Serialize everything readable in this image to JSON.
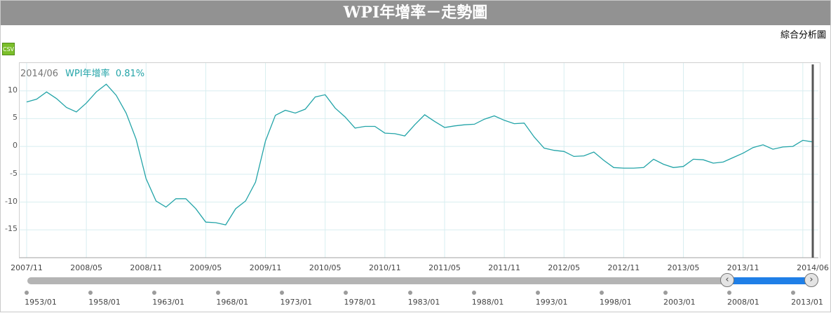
{
  "header": {
    "title": "WPI年增率－走勢圖",
    "analysis_link": "綜合分析圖",
    "csv_label": "CSV"
  },
  "tooltip": {
    "date": "2014/06",
    "series": "WPI年增率",
    "value": "0.81%"
  },
  "navigator": {
    "labels": [
      "1953/01",
      "1958/01",
      "1963/01",
      "1968/01",
      "1973/01",
      "1978/01",
      "1983/01",
      "1988/01",
      "1993/01",
      "1998/01",
      "2003/01",
      "2008/01",
      "2013/01"
    ],
    "left_handle": "‹",
    "right_handle": "›"
  },
  "colors": {
    "line": "#23a4a8",
    "title_bar": "#929292",
    "navigator_range": "#1f7fe7"
  },
  "chart_data": {
    "type": "line",
    "title": "WPI年增率－走勢圖",
    "xlabel": "",
    "ylabel": "",
    "ylim": [
      -20,
      15
    ],
    "yticks": [
      10,
      5,
      0,
      -5,
      -10,
      -15
    ],
    "x_tick_labels": [
      "2007/11",
      "2008/05",
      "2008/11",
      "2009/05",
      "2009/11",
      "2010/05",
      "2010/11",
      "2011/05",
      "2011/11",
      "2012/05",
      "2012/11",
      "2013/05",
      "2013/11",
      "2014/06"
    ],
    "grid": true,
    "series": [
      {
        "name": "WPI年增率",
        "x": [
          "2007/11",
          "2007/12",
          "2008/01",
          "2008/02",
          "2008/03",
          "2008/04",
          "2008/05",
          "2008/06",
          "2008/07",
          "2008/08",
          "2008/09",
          "2008/10",
          "2008/11",
          "2008/12",
          "2009/01",
          "2009/02",
          "2009/03",
          "2009/04",
          "2009/05",
          "2009/06",
          "2009/07",
          "2009/08",
          "2009/09",
          "2009/10",
          "2009/11",
          "2009/12",
          "2010/01",
          "2010/02",
          "2010/03",
          "2010/04",
          "2010/05",
          "2010/06",
          "2010/07",
          "2010/08",
          "2010/09",
          "2010/10",
          "2010/11",
          "2010/12",
          "2011/01",
          "2011/02",
          "2011/03",
          "2011/04",
          "2011/05",
          "2011/06",
          "2011/07",
          "2011/08",
          "2011/09",
          "2011/10",
          "2011/11",
          "2011/12",
          "2012/01",
          "2012/02",
          "2012/03",
          "2012/04",
          "2012/05",
          "2012/06",
          "2012/07",
          "2012/08",
          "2012/09",
          "2012/10",
          "2012/11",
          "2012/12",
          "2013/01",
          "2013/02",
          "2013/03",
          "2013/04",
          "2013/05",
          "2013/06",
          "2013/07",
          "2013/08",
          "2013/09",
          "2013/10",
          "2013/11",
          "2013/12",
          "2014/01",
          "2014/02",
          "2014/03",
          "2014/04",
          "2014/05",
          "2014/06"
        ],
        "values": [
          8.0,
          8.5,
          9.8,
          8.6,
          7.0,
          6.2,
          7.8,
          9.8,
          11.2,
          9.2,
          6.0,
          1.3,
          -5.8,
          -9.8,
          -10.9,
          -9.4,
          -9.4,
          -11.2,
          -13.6,
          -13.7,
          -14.1,
          -11.2,
          -9.8,
          -6.4,
          1.0,
          5.6,
          6.5,
          6.0,
          6.7,
          8.9,
          9.3,
          6.9,
          5.3,
          3.3,
          3.6,
          3.6,
          2.4,
          2.3,
          1.9,
          3.9,
          5.7,
          4.5,
          3.4,
          3.7,
          3.9,
          4.0,
          4.9,
          5.5,
          4.7,
          4.1,
          4.2,
          1.7,
          -0.3,
          -0.7,
          -0.9,
          -1.8,
          -1.7,
          -1.0,
          -2.5,
          -3.8,
          -3.9,
          -3.9,
          -3.8,
          -2.3,
          -3.2,
          -3.8,
          -3.6,
          -2.3,
          -2.4,
          -3.0,
          -2.8,
          -2.0,
          -1.2,
          -0.2,
          0.3,
          -0.5,
          -0.1,
          0.0,
          1.1,
          0.81
        ]
      }
    ]
  }
}
